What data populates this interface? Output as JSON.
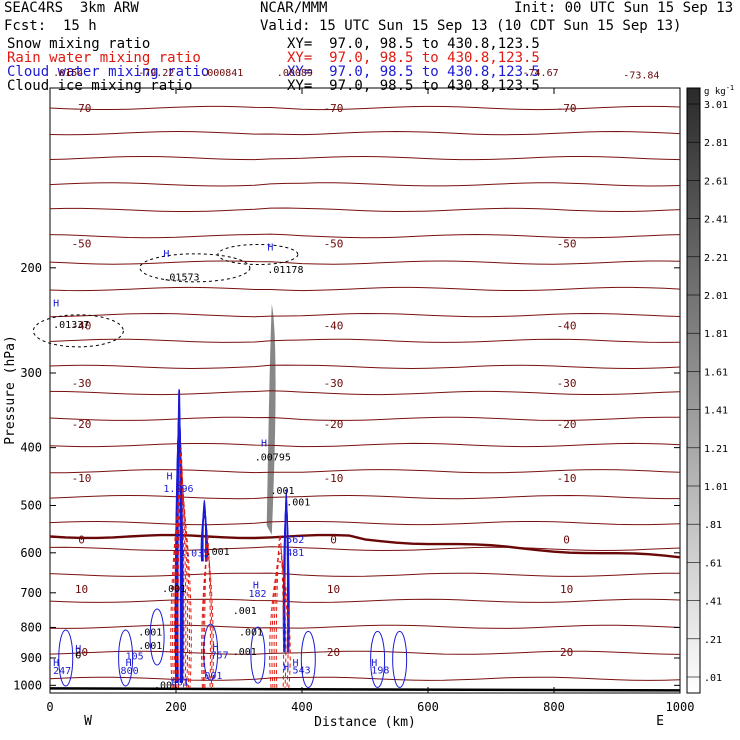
{
  "header": {
    "title": "SEAC4RS  3km ARW",
    "center": "NCAR/MMM",
    "init": "Init: 00 UTC Sun 15 Sep 13",
    "fcst": "Fcst:  15 h",
    "valid": "Valid: 15 UTC Sun 15 Sep 13 (10 CDT Sun 15 Sep 13)"
  },
  "legend": [
    {
      "name": "Snow mixing ratio",
      "xy": "XY=  97.0, 98.5 to 430.8,123.5",
      "color": "#000000"
    },
    {
      "name": "Rain water mixing ratio",
      "xy": "XY=  97.0, 98.5 to 430.8,123.5",
      "color": "#e0190f"
    },
    {
      "name": "Cloud water mixing ratio",
      "xy": "XY=  97.0, 98.5 to 430.8,123.5",
      "color": "#1a1ad6"
    },
    {
      "name": "Cloud ice mixing ratio",
      "xy": "XY=  97.0, 98.5 to 430.8,123.5",
      "color": "#000000"
    }
  ],
  "chart_data": {
    "type": "cross-section",
    "xlabel": "Distance (km)",
    "ylabel": "Pressure (hPa)",
    "xlim": [
      0,
      1000
    ],
    "ylim": [
      1030,
      100
    ],
    "y_scale": "log",
    "x_ticks": [
      0,
      200,
      400,
      600,
      800,
      1000
    ],
    "y_ticks": [
      200,
      300,
      400,
      500,
      600,
      700,
      800,
      900,
      1000
    ],
    "direction_labels": {
      "left": "W",
      "right": "E"
    },
    "colorbar": {
      "unit_label": "g kg",
      "unit_exponent": "-1",
      "levels": [
        ".01",
        ".21",
        ".41",
        ".61",
        ".81",
        "1.01",
        "1.21",
        "1.41",
        "1.61",
        "1.81",
        "2.01",
        "2.21",
        "2.41",
        "2.61",
        "2.81",
        "3.01"
      ]
    },
    "temperature_isotherms": [
      {
        "p": 108,
        "label": "-70"
      },
      {
        "p": 182,
        "label": "-50"
      },
      {
        "p": 250,
        "label": "-40"
      },
      {
        "p": 312,
        "label": "-30"
      },
      {
        "p": 365,
        "label": "-20"
      },
      {
        "p": 450,
        "label": "-10"
      },
      {
        "p": 570,
        "label": "0"
      },
      {
        "p": 690,
        "label": "10"
      },
      {
        "p": 880,
        "label": "20"
      }
    ],
    "extra_temperature_labels": [
      {
        "x": 140,
        "p": 94,
        "text": "-79.22"
      },
      {
        "x": 750,
        "p": 94,
        "text": "-74.67"
      },
      {
        "x": 910,
        "p": 95,
        "text": "-73.84"
      },
      {
        "x": 5,
        "p": 94,
        "text": ".0154"
      },
      {
        "x": 240,
        "p": 94,
        "text": ".000841"
      },
      {
        "x": 360,
        "p": 94,
        "text": ".00089"
      }
    ],
    "maxima_labels": [
      {
        "x": 5,
        "p": 232,
        "text": "H"
      },
      {
        "x": 5,
        "p": 252,
        "text": ".01337"
      },
      {
        "x": 180,
        "p": 192,
        "text": "H"
      },
      {
        "x": 180,
        "p": 210,
        "text": ".01573"
      },
      {
        "x": 345,
        "p": 187,
        "text": "H"
      },
      {
        "x": 345,
        "p": 204,
        "text": ".01178"
      },
      {
        "x": 335,
        "p": 398,
        "text": "H"
      },
      {
        "x": 325,
        "p": 420,
        "text": ".00795"
      },
      {
        "x": 185,
        "p": 452,
        "text": "H"
      },
      {
        "x": 180,
        "p": 475,
        "text": "1.296"
      },
      {
        "x": 205,
        "p": 608,
        "text": "3.035"
      },
      {
        "x": 247,
        "p": 605,
        "text": ".001"
      },
      {
        "x": 350,
        "p": 478,
        "text": ".001"
      },
      {
        "x": 375,
        "p": 578,
        "text": "562"
      },
      {
        "x": 375,
        "p": 607,
        "text": "481"
      },
      {
        "x": 178,
        "p": 698,
        "text": ".001"
      },
      {
        "x": 322,
        "p": 688,
        "text": "H"
      },
      {
        "x": 315,
        "p": 712,
        "text": "182"
      },
      {
        "x": 290,
        "p": 760,
        "text": ".001"
      },
      {
        "x": 300,
        "p": 825,
        "text": ".001"
      },
      {
        "x": 140,
        "p": 825,
        "text": ".001"
      },
      {
        "x": 140,
        "p": 870,
        "text": ".001"
      },
      {
        "x": 40,
        "p": 880,
        "text": "H"
      },
      {
        "x": 40,
        "p": 902,
        "text": "O"
      },
      {
        "x": 5,
        "p": 928,
        "text": "H"
      },
      {
        "x": 5,
        "p": 958,
        "text": "247"
      },
      {
        "x": 120,
        "p": 928,
        "text": "H"
      },
      {
        "x": 112,
        "p": 958,
        "text": "800"
      },
      {
        "x": 120,
        "p": 905,
        "text": "105"
      },
      {
        "x": 258,
        "p": 875,
        "text": "H"
      },
      {
        "x": 255,
        "p": 902,
        "text": "757"
      },
      {
        "x": 245,
        "p": 975,
        "text": "001"
      },
      {
        "x": 370,
        "p": 945,
        "text": "H"
      },
      {
        "x": 385,
        "p": 955,
        "text": "543"
      },
      {
        "x": 510,
        "p": 928,
        "text": "H"
      },
      {
        "x": 510,
        "p": 955,
        "text": "198"
      },
      {
        "x": 165,
        "p": 1012,
        "text": ".001"
      },
      {
        "x": 385,
        "p": 928,
        "text": "H"
      },
      {
        "x": 290,
        "p": 890,
        "text": ".001"
      },
      {
        "x": 375,
        "p": 500,
        "text": ".001"
      },
      {
        "x": 192,
        "p": 1000,
        "text": "001"
      }
    ],
    "zero_isotherm_p": 570,
    "ground_p": 1012,
    "convective_cores_km": [
      205,
      245,
      350,
      375
    ]
  }
}
